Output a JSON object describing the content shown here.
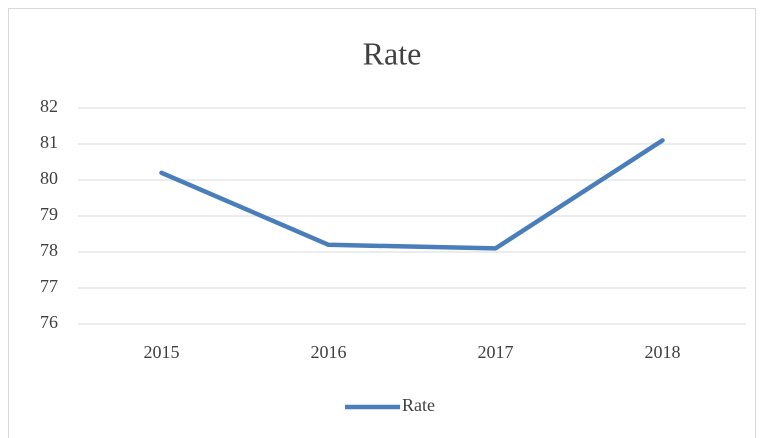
{
  "chart_data": {
    "type": "line",
    "title": "Rate",
    "categories": [
      "2015",
      "2016",
      "2017",
      "2018"
    ],
    "series": [
      {
        "name": "Rate",
        "color": "#4a7ebb",
        "values": [
          80.2,
          78.2,
          78.1,
          81.1
        ]
      }
    ],
    "ylim": [
      76,
      82
    ],
    "yticks": [
      76,
      77,
      78,
      79,
      80,
      81,
      82
    ],
    "grid": true,
    "legend": "bottom"
  }
}
